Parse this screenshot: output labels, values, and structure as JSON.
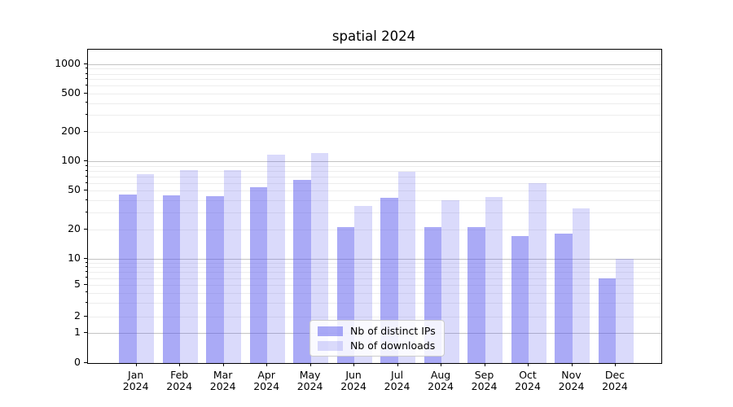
{
  "chart_data": {
    "type": "bar",
    "title": "spatial 2024",
    "categories": [
      "Jan 2024",
      "Feb 2024",
      "Mar 2024",
      "Apr 2024",
      "May 2024",
      "Jun 2024",
      "Jul 2024",
      "Aug 2024",
      "Sep 2024",
      "Oct 2024",
      "Nov 2024",
      "Dec 2024"
    ],
    "series": [
      {
        "name": "Nb of distinct IPs",
        "color": "rgba(85,85,238,0.50)",
        "values": [
          46,
          45,
          44,
          54,
          65,
          21,
          42,
          21,
          21,
          17,
          18,
          6
        ]
      },
      {
        "name": "Nb of downloads",
        "color": "rgba(85,85,238,0.22)",
        "values": [
          74,
          82,
          81,
          118,
          123,
          35,
          78,
          40,
          43,
          60,
          33,
          10
        ]
      }
    ],
    "xlabel": "",
    "ylabel": "",
    "yscale": "symlog",
    "yticks": [
      0,
      1,
      2,
      5,
      10,
      20,
      50,
      100,
      200,
      500,
      1000
    ],
    "ylim": [
      0,
      1400
    ],
    "grid": true,
    "grid_major_color": "#c3c3c3",
    "grid_minor_color": "#ededed",
    "legend_position": "lower center"
  }
}
